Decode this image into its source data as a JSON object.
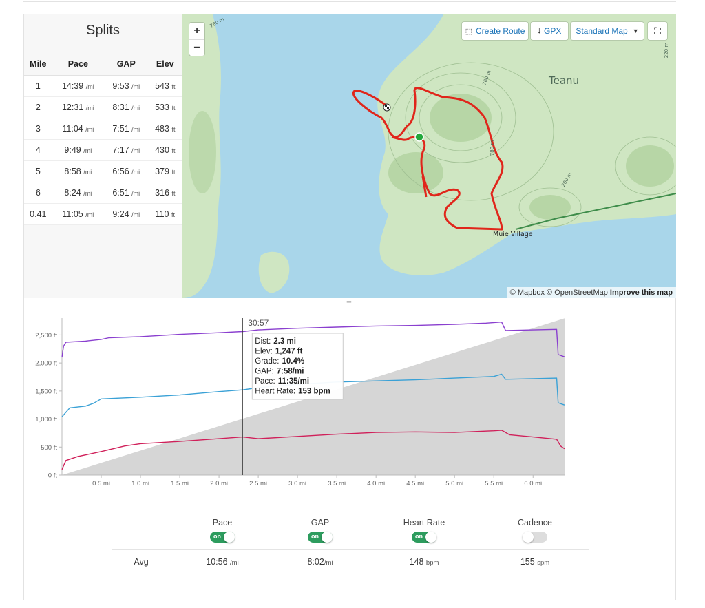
{
  "splits": {
    "title": "Splits",
    "headers": [
      "Mile",
      "Pace",
      "GAP",
      "Elev"
    ],
    "rows": [
      {
        "mile": "1",
        "pace": "14:39",
        "gap": "9:53",
        "elev": "543"
      },
      {
        "mile": "2",
        "pace": "12:31",
        "gap": "8:31",
        "elev": "533"
      },
      {
        "mile": "3",
        "pace": "11:04",
        "gap": "7:51",
        "elev": "483"
      },
      {
        "mile": "4",
        "pace": "9:49",
        "gap": "7:17",
        "elev": "430"
      },
      {
        "mile": "5",
        "pace": "8:58",
        "gap": "6:56",
        "elev": "379"
      },
      {
        "mile": "6",
        "pace": "8:24",
        "gap": "6:51",
        "elev": "316"
      },
      {
        "mile": "0.41",
        "pace": "11:05",
        "gap": "9:24",
        "elev": "110"
      }
    ],
    "pace_unit": "/mi",
    "elev_unit": "ft"
  },
  "map": {
    "create_route": "Create Route",
    "gpx": "GPX",
    "style": "Standard Map",
    "zoom_in": "+",
    "zoom_out": "−",
    "place_teanu": "Teanu",
    "place_muie": "Muie Village",
    "attribution_mapbox": "© Mapbox",
    "attribution_osm": "© OpenStreetMap",
    "attribution_improve": "Improve this map",
    "contour_labels": [
      "780 m",
      "760 m",
      "200 m",
      "220 m",
      "780 m"
    ],
    "colors": {
      "water": "#a9d6ea",
      "land": "#cfe6c2",
      "route": "#e0261b",
      "start": "#22a83c"
    }
  },
  "chart_data": {
    "type": "line",
    "x_unit": "mi",
    "xlim": [
      0,
      6.41
    ],
    "ylim": [
      0,
      2800
    ],
    "x_ticks": [
      "0.5 mi",
      "1.0 mi",
      "1.5 mi",
      "2.0 mi",
      "2.5 mi",
      "3.0 mi",
      "3.5 mi",
      "4.0 mi",
      "4.5 mi",
      "5.0 mi",
      "5.5 mi",
      "6.0 mi"
    ],
    "y_ticks": [
      "0 ft",
      "500 ft",
      "1,000 ft",
      "1,500 ft",
      "2,000 ft",
      "2,500 ft"
    ],
    "elevation_area": {
      "x": [
        0,
        6.41
      ],
      "y": [
        0,
        2800
      ],
      "color": "#d6d6d6"
    },
    "series": [
      {
        "color": "#8a3fcf",
        "x": [
          0,
          0.02,
          0.05,
          0.3,
          0.5,
          0.6,
          1.0,
          1.5,
          2.0,
          2.3,
          2.5,
          3.0,
          3.5,
          4.0,
          4.5,
          5.0,
          5.4,
          5.6,
          5.65,
          6.0,
          6.3,
          6.32,
          6.4
        ],
        "y": [
          2100,
          2300,
          2370,
          2390,
          2420,
          2450,
          2470,
          2510,
          2540,
          2560,
          2590,
          2620,
          2640,
          2660,
          2670,
          2690,
          2710,
          2730,
          2580,
          2590,
          2600,
          2150,
          2110
        ]
      },
      {
        "color": "#3aa1d6",
        "x": [
          0,
          0.05,
          0.1,
          0.3,
          0.4,
          0.5,
          1.0,
          1.5,
          2.0,
          2.3,
          2.5,
          3.0,
          3.5,
          4.0,
          4.5,
          5.0,
          5.5,
          5.6,
          5.65,
          6.0,
          6.3,
          6.32,
          6.4
        ],
        "y": [
          1040,
          1120,
          1200,
          1230,
          1280,
          1360,
          1390,
          1430,
          1490,
          1520,
          1560,
          1620,
          1660,
          1680,
          1700,
          1730,
          1760,
          1800,
          1710,
          1720,
          1730,
          1290,
          1250
        ]
      },
      {
        "color": "#d0205a",
        "x": [
          0,
          0.05,
          0.2,
          0.5,
          0.8,
          1.0,
          1.5,
          2.0,
          2.3,
          2.5,
          3.0,
          3.5,
          4.0,
          4.5,
          5.0,
          5.5,
          5.6,
          5.7,
          6.0,
          6.3,
          6.35,
          6.4
        ],
        "y": [
          100,
          260,
          330,
          420,
          520,
          560,
          600,
          650,
          680,
          650,
          690,
          730,
          760,
          770,
          760,
          790,
          800,
          720,
          680,
          640,
          520,
          470
        ]
      }
    ],
    "cursor": {
      "x": 2.3,
      "time": "30:57"
    },
    "tooltip": [
      {
        "label": "Dist:",
        "value": "2.3 mi"
      },
      {
        "label": "Elev:",
        "value": "1,247 ft"
      },
      {
        "label": "Grade:",
        "value": "10.4%"
      },
      {
        "label": "GAP:",
        "value": "7:58/mi"
      },
      {
        "label": "Pace:",
        "value": "11:35/mi"
      },
      {
        "label": "Heart Rate:",
        "value": "153 bpm"
      }
    ]
  },
  "legend": {
    "pace": {
      "label": "Pace",
      "on": true
    },
    "gap": {
      "label": "GAP",
      "on": true
    },
    "heart_rate": {
      "label": "Heart Rate",
      "on": true
    },
    "cadence": {
      "label": "Cadence",
      "on": false
    },
    "on_text": "on"
  },
  "averages": {
    "label": "Avg",
    "pace": "10:56",
    "pace_unit": "/mi",
    "gap": "8:02",
    "gap_unit": "/mi",
    "heart_rate": "148",
    "heart_rate_unit": "bpm",
    "cadence": "155",
    "cadence_unit": "spm"
  }
}
